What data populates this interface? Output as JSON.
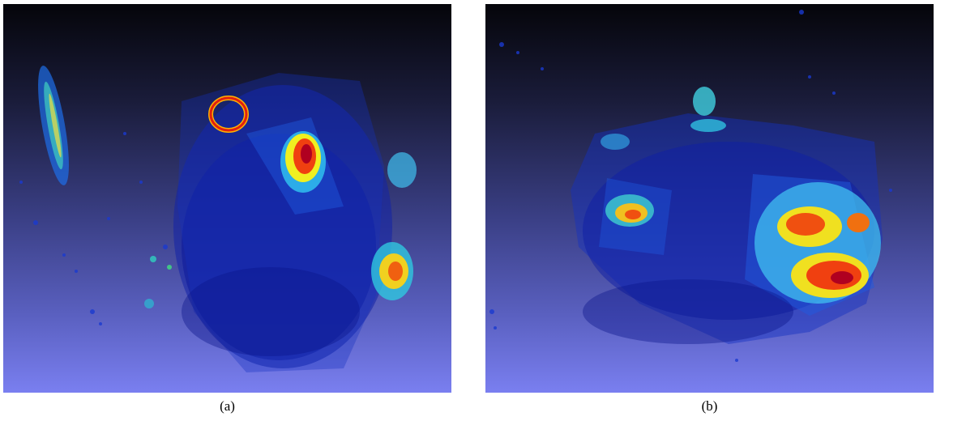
{
  "figure": {
    "panels": [
      {
        "id": "a",
        "caption": "(a)"
      },
      {
        "id": "b",
        "caption": "(b)"
      }
    ]
  },
  "colors": {
    "background_top": "#05050a",
    "background_bottom": "#7a7ff0",
    "colormap": [
      "#00008f",
      "#0000ff",
      "#0080ff",
      "#00ffff",
      "#80ff80",
      "#ffff00",
      "#ff8000",
      "#ff0000",
      "#800000"
    ]
  }
}
